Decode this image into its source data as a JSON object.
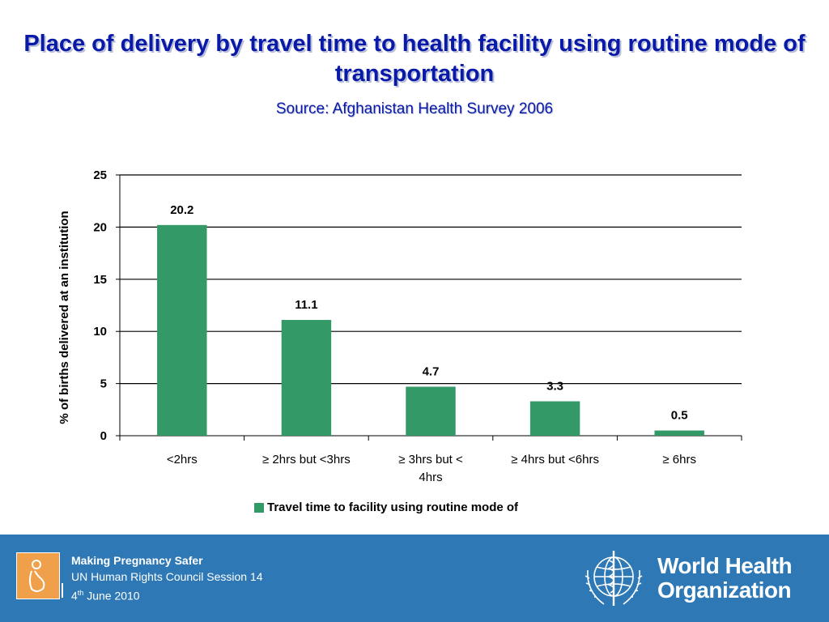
{
  "slide": {
    "title": "Place of delivery by travel time to health facility using routine mode of transportation",
    "subtitle": "Source: Afghanistan Health Survey 2006"
  },
  "chart_data": {
    "type": "bar",
    "categories": [
      "<2hrs",
      "≥ 2hrs but <3hrs",
      "≥ 3hrs but < 4hrs",
      "≥ 4hrs but <6hrs",
      "≥ 6hrs"
    ],
    "category_lines": [
      [
        "<2hrs"
      ],
      [
        "≥ 2hrs but <3hrs"
      ],
      [
        "≥ 3hrs but <",
        "4hrs"
      ],
      [
        "≥ 4hrs but <6hrs"
      ],
      [
        "≥ 6hrs"
      ]
    ],
    "series": [
      {
        "name": "Travel time to facility using routine mode of",
        "values": [
          20.2,
          11.1,
          4.7,
          3.3,
          0.5
        ],
        "color": "#339966"
      }
    ],
    "data_labels": [
      "20.2",
      "11.1",
      "4.7",
      "3.3",
      "0.5"
    ],
    "ylabel": "% of births delivered at an institution",
    "xlabel": "",
    "ylim": [
      0,
      25
    ],
    "yticks": [
      0,
      5,
      10,
      15,
      20,
      25
    ],
    "grid": true,
    "legend_position": "bottom"
  },
  "footer": {
    "line1": "Making Pregnancy Safer",
    "line2": "UN Human Rights Council Session 14",
    "line3_day": "4",
    "line3_sup": "th",
    "line3_rest": " June 2010",
    "org_line1": "World Health",
    "org_line2": "Organization"
  }
}
